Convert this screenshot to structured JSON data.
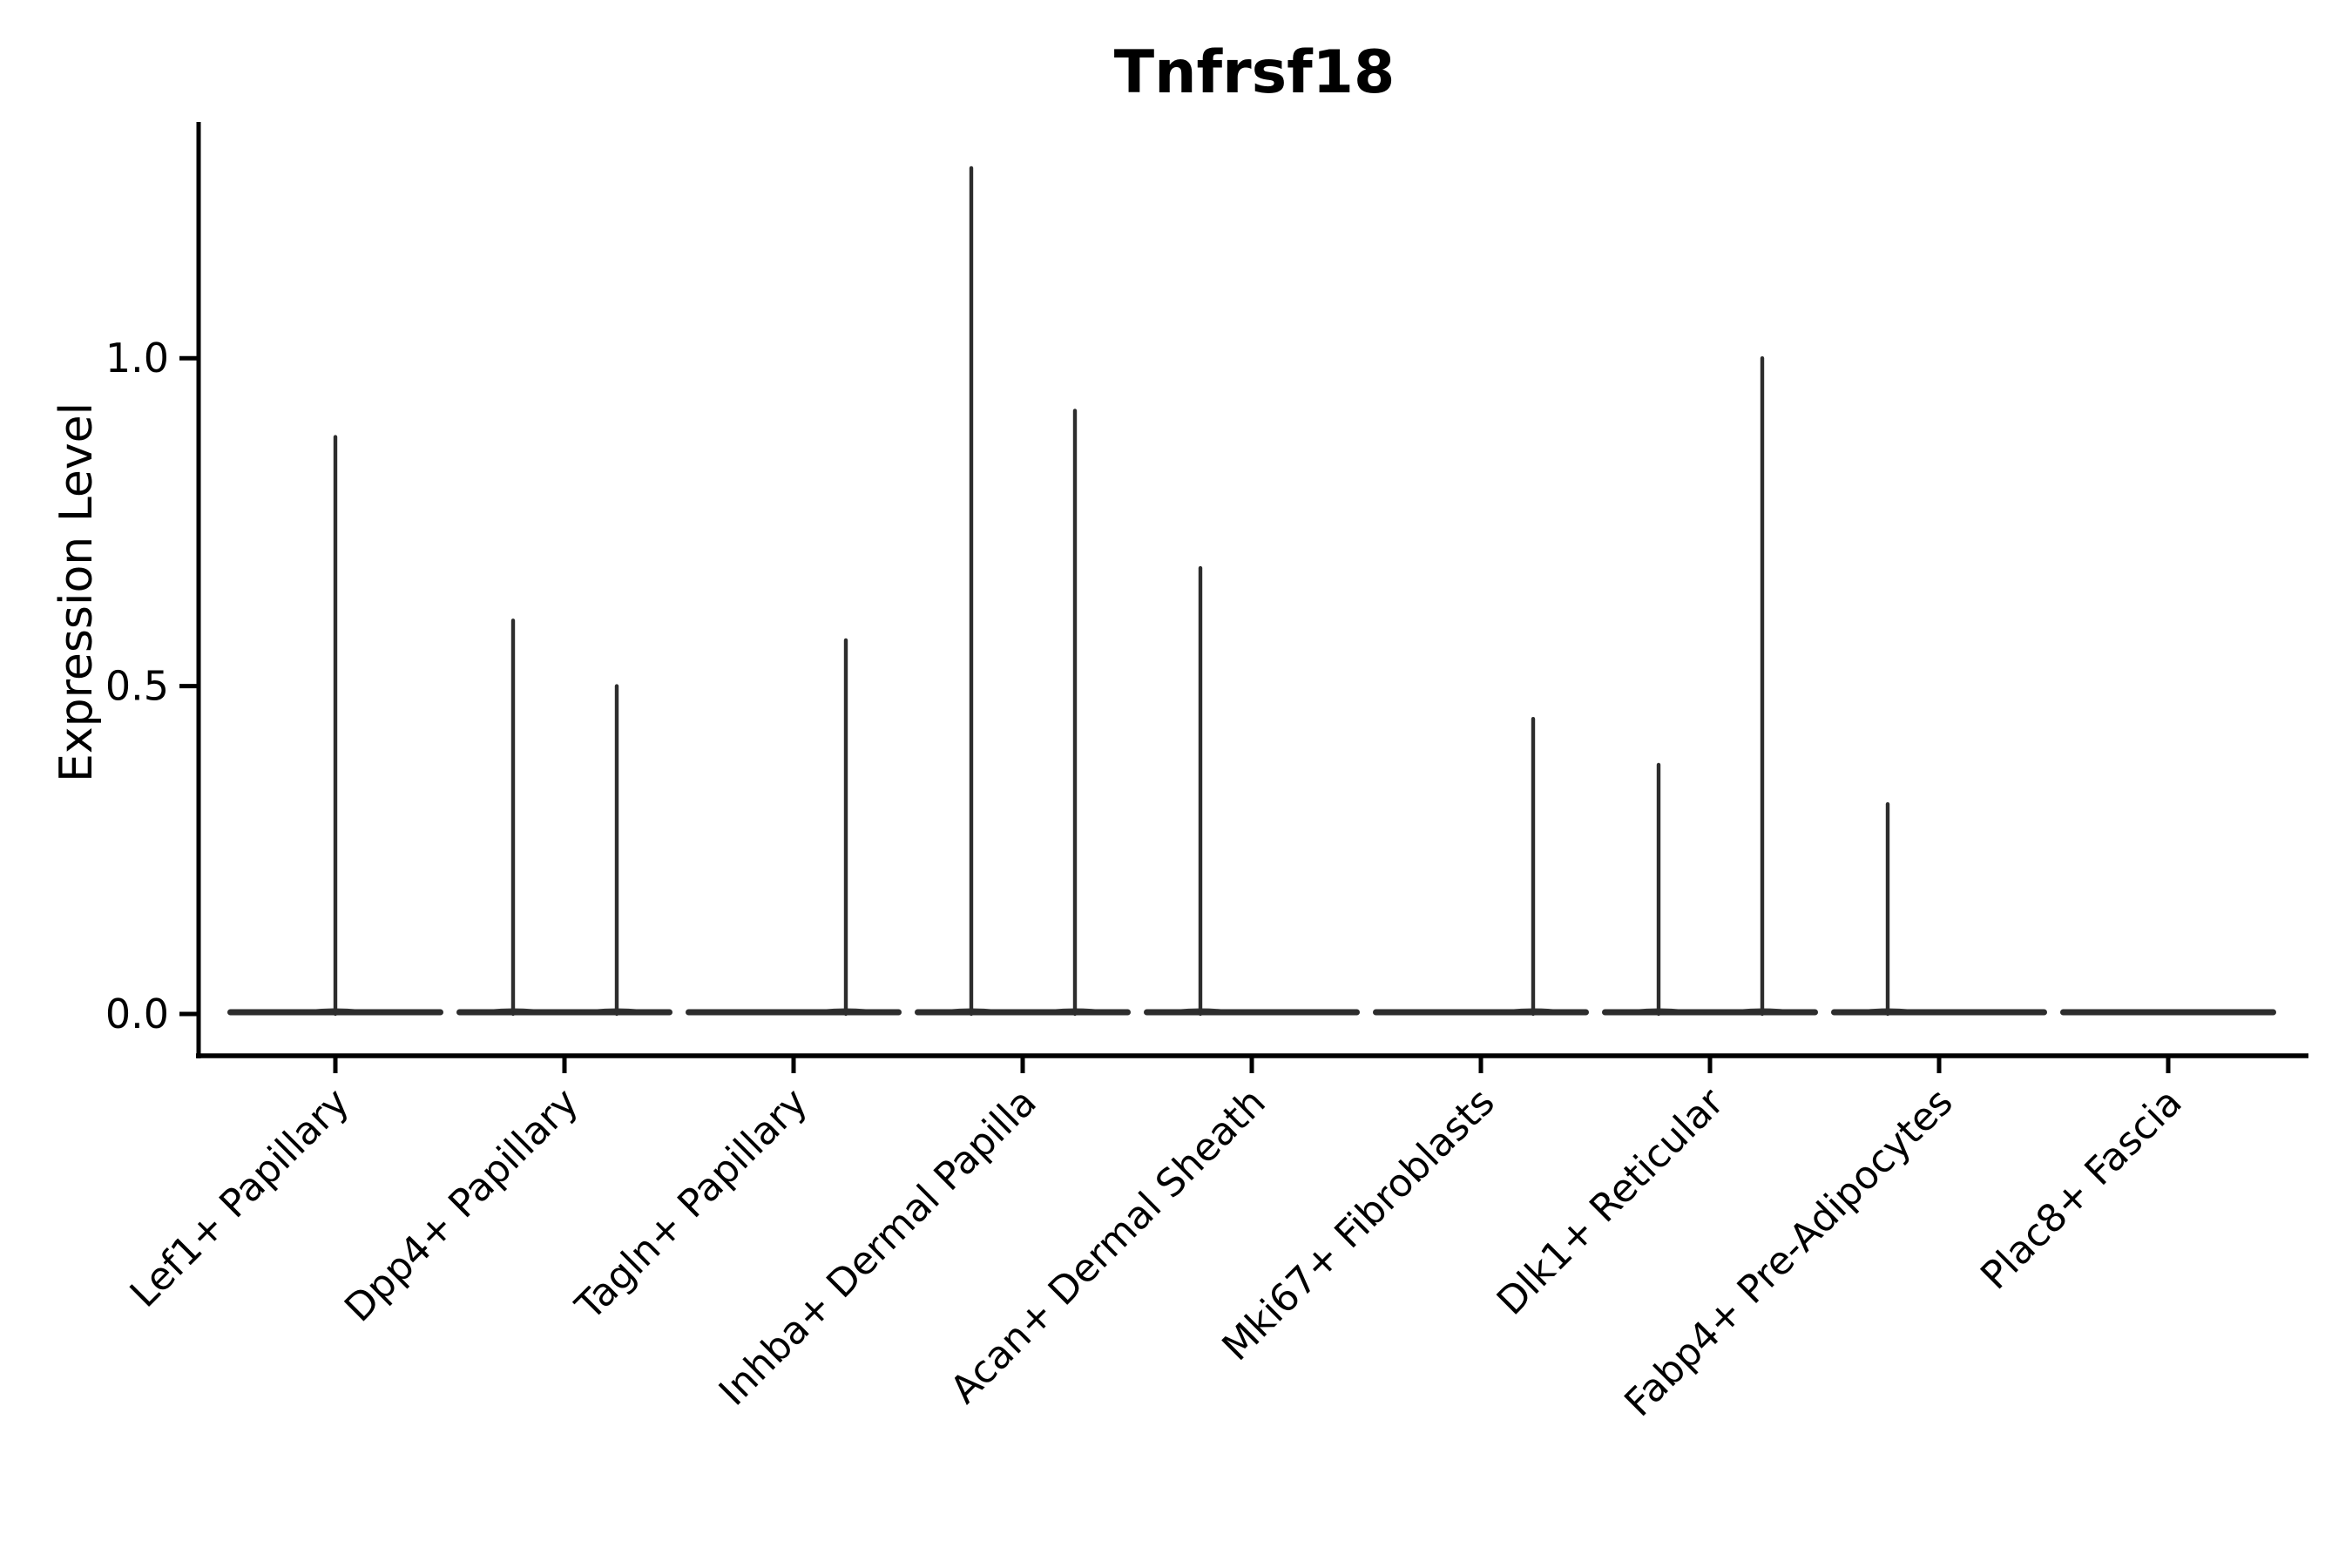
{
  "chart_data": {
    "type": "violin",
    "title": "Tnfrsf18",
    "xlabel": "",
    "ylabel": "Expression Level",
    "yticks": [
      0.0,
      0.5,
      1.0
    ],
    "ytick_labels": [
      "0.0",
      "0.5",
      "1.0"
    ],
    "ylim": [
      0,
      1.36
    ],
    "grid": false,
    "legend": "none",
    "background": "#ffffff",
    "categories": [
      "Lef1+ Papillary",
      "Dpp4+ Papillary",
      "Tagln+ Papillary",
      "Inhba+ Dermal Papilla",
      "Acan+ Dermal Sheath",
      "Mki67+ Fibroblasts",
      "Dlk1+ Reticular",
      "Fabp4+ Pre-Adipocytes",
      "Plac8+ Fascia"
    ],
    "description": "Violin plot; every category shows a flat violin base at expression 0; thin needle spikes mark maximum expression peaks",
    "violins": [
      {
        "category": "Lef1+ Papillary",
        "base_value": 0.0,
        "needles": [
          {
            "slot": "center",
            "peak": 0.88
          }
        ]
      },
      {
        "category": "Dpp4+ Papillary",
        "base_value": 0.0,
        "needles": [
          {
            "slot": "left",
            "peak": 0.6
          },
          {
            "slot": "right",
            "peak": 0.5
          }
        ]
      },
      {
        "category": "Tagln+ Papillary",
        "base_value": 0.0,
        "needles": [
          {
            "slot": "right",
            "peak": 0.57
          }
        ]
      },
      {
        "category": "Inhba+ Dermal Papilla",
        "base_value": 0.0,
        "needles": [
          {
            "slot": "left",
            "peak": 1.29
          },
          {
            "slot": "right",
            "peak": 0.92
          }
        ]
      },
      {
        "category": "Acan+ Dermal Sheath",
        "base_value": 0.0,
        "needles": [
          {
            "slot": "left",
            "peak": 0.68
          }
        ]
      },
      {
        "category": "Mki67+ Fibroblasts",
        "base_value": 0.0,
        "needles": [
          {
            "slot": "right",
            "peak": 0.45
          }
        ]
      },
      {
        "category": "Dlk1+ Reticular",
        "base_value": 0.0,
        "needles": [
          {
            "slot": "left",
            "peak": 0.38
          },
          {
            "slot": "right",
            "peak": 1.0
          }
        ]
      },
      {
        "category": "Fabp4+ Pre-Adipocytes",
        "base_value": 0.0,
        "needles": [
          {
            "slot": "left",
            "peak": 0.32
          }
        ]
      },
      {
        "category": "Plac8+ Fascia",
        "base_value": 0.0,
        "needles": []
      }
    ],
    "colors": {
      "violin": "#2d2d2d",
      "axis": "#000000",
      "text": "#000000"
    }
  }
}
